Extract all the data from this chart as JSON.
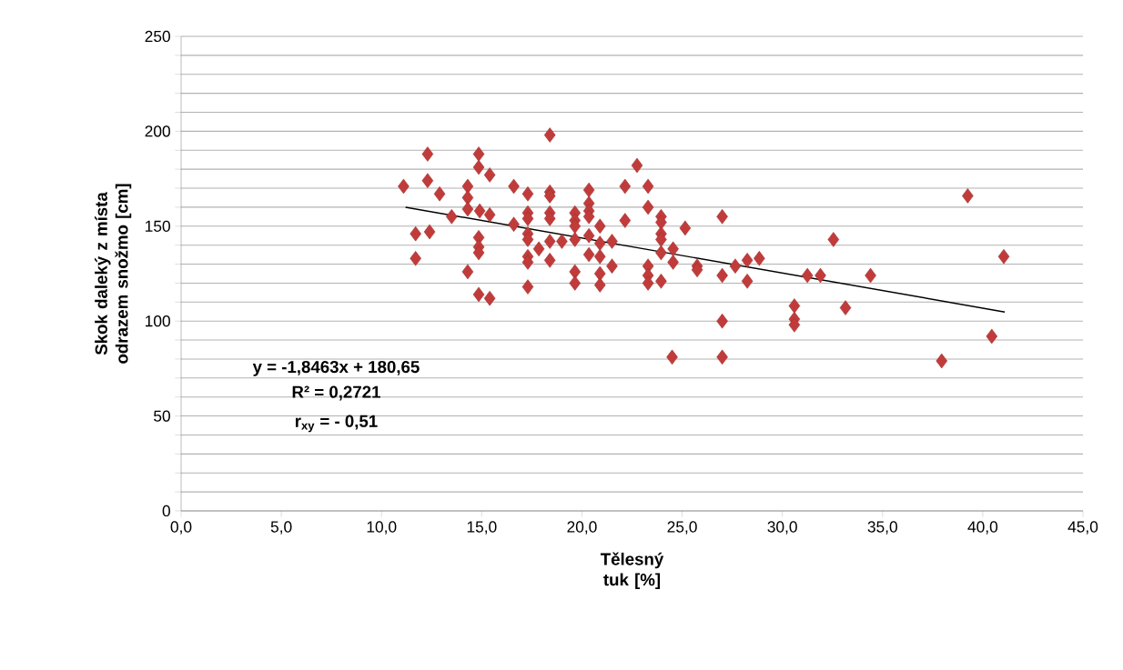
{
  "chart_data": {
    "type": "scatter",
    "xlabel": "Tělesný tuk [%]",
    "ylabel": "Skok daleký z místa odrazem snožmo [cm]",
    "xlim": [
      0,
      45
    ],
    "ylim": [
      0,
      250
    ],
    "xticks": [
      {
        "value": 0,
        "label": "0,0"
      },
      {
        "value": 5,
        "label": "5,0"
      },
      {
        "value": 10,
        "label": "10,0"
      },
      {
        "value": 15,
        "label": "15,0"
      },
      {
        "value": 20,
        "label": "20,0"
      },
      {
        "value": 25,
        "label": "25,0"
      },
      {
        "value": 30,
        "label": "30,0"
      },
      {
        "value": 35,
        "label": "35,0"
      },
      {
        "value": 40,
        "label": "40,0"
      },
      {
        "value": 45,
        "label": "45,0"
      }
    ],
    "yticks": [
      0,
      {
        "value": 10,
        "label": null
      },
      {
        "value": 20,
        "label": null
      },
      {
        "value": 30,
        "label": null
      },
      {
        "value": 40,
        "label": null
      },
      50,
      {
        "value": 60,
        "label": null
      },
      {
        "value": 70,
        "label": null
      },
      {
        "value": 80,
        "label": null
      },
      {
        "value": 90,
        "label": null
      },
      100,
      {
        "value": 110,
        "label": null
      },
      {
        "value": 120,
        "label": null
      },
      {
        "value": 130,
        "label": null
      },
      {
        "value": 140,
        "label": null
      },
      150,
      {
        "value": 160,
        "label": null
      },
      {
        "value": 170,
        "label": null
      },
      {
        "value": 180,
        "label": null
      },
      {
        "value": 190,
        "label": null
      },
      200,
      {
        "value": 210,
        "label": null
      },
      {
        "value": 220,
        "label": null
      },
      {
        "value": 230,
        "label": null
      },
      {
        "value": 240,
        "label": null
      },
      250
    ],
    "grid": "y",
    "series": [
      {
        "marker": "diamond",
        "color": "#c23b3b",
        "x": [
          11.1,
          12.3,
          12.3,
          12.9,
          11.7,
          12.4,
          11.7,
          13.5,
          14.3,
          14.3,
          14.3,
          14.3,
          14.85,
          14.85,
          15.4,
          14.9,
          15.4,
          14.85,
          14.85,
          14.85,
          14.85,
          15.4,
          16.6,
          17.3,
          16.6,
          17.3,
          17.3,
          17.3,
          17.3,
          17.3,
          17.3,
          17.3,
          17.85,
          18.4,
          18.4,
          18.4,
          18.4,
          18.4,
          18.4,
          18.4,
          19.0,
          19.65,
          19.65,
          19.65,
          19.65,
          19.65,
          19.65,
          20.35,
          20.35,
          20.35,
          20.35,
          20.35,
          20.35,
          20.9,
          20.9,
          20.9,
          20.9,
          20.9,
          21.5,
          21.5,
          22.75,
          22.15,
          23.3,
          22.15,
          23.3,
          23.95,
          23.95,
          25.15,
          23.95,
          23.95,
          23.95,
          24.55,
          24.55,
          23.3,
          23.3,
          23.3,
          23.95,
          25.75,
          25.75,
          27.0,
          27.0,
          27.0,
          27.0,
          24.5,
          27.65,
          28.25,
          28.85,
          28.25,
          31.25,
          31.9,
          30.6,
          30.6,
          30.6,
          32.55,
          34.4,
          33.15,
          39.25,
          41.05,
          40.45,
          37.95
        ],
        "values": [
          171,
          188,
          174,
          167,
          146,
          147,
          133,
          155,
          171,
          165,
          159,
          126,
          188,
          181,
          177,
          158,
          156,
          144,
          139,
          136,
          114,
          112,
          171,
          167,
          151,
          157,
          154,
          146,
          143,
          134,
          131,
          118,
          138,
          198,
          168,
          166,
          157,
          154,
          142,
          132,
          142,
          157,
          153,
          150,
          143,
          126,
          120,
          169,
          162,
          158,
          155,
          145,
          135,
          150,
          141,
          134,
          125,
          119,
          142,
          129,
          182,
          171,
          171,
          153,
          160,
          155,
          152,
          149,
          146,
          143,
          136,
          138,
          131,
          129,
          124,
          120,
          121,
          129,
          127,
          155,
          124,
          100,
          81,
          81,
          129,
          132,
          133,
          121,
          124,
          124,
          108,
          101,
          98,
          143,
          124,
          107,
          166,
          134,
          92,
          79
        ]
      },
      {
        "type": "line",
        "marker": "none",
        "line_style": "solid",
        "color": "#000000",
        "x": [
          11.2,
          41.1
        ],
        "values": [
          160.0,
          104.8
        ]
      }
    ],
    "annotations": [
      "y = -1,8463x + 180,65",
      "R² = 0,2721",
      "r$_{xy}$ = - 0,51"
    ]
  }
}
